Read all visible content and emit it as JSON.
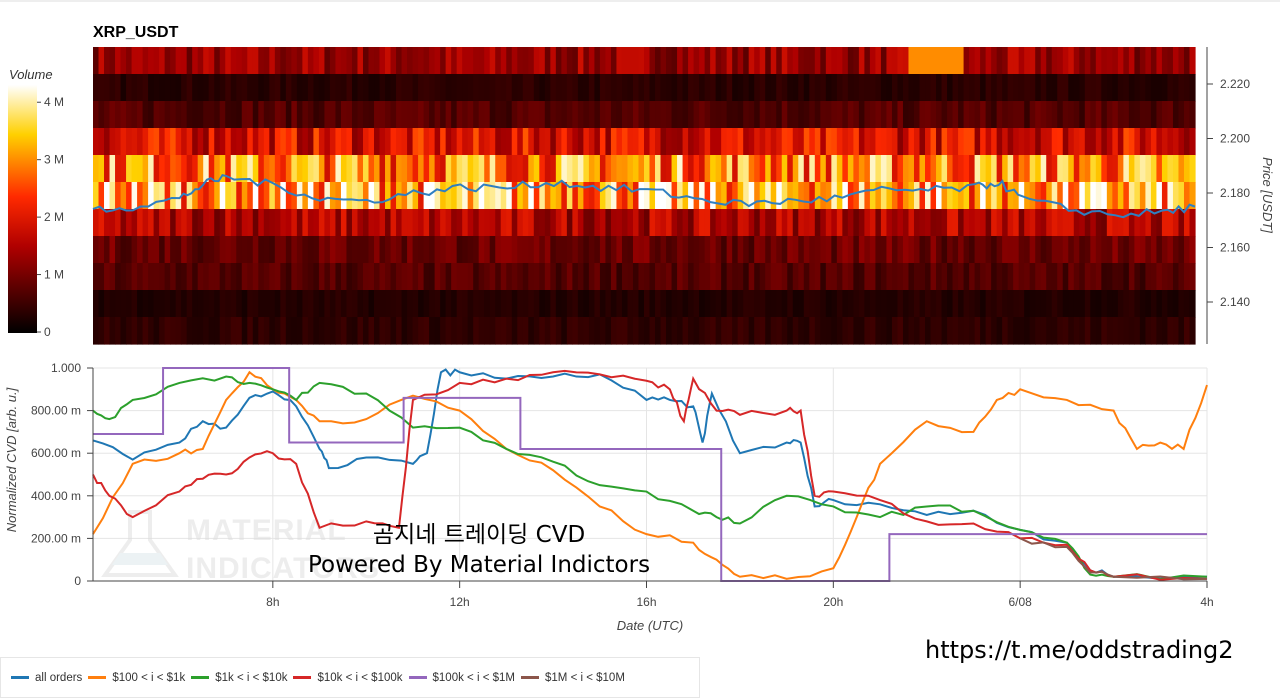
{
  "chart_data": [
    {
      "type": "heatmap",
      "title": "XRP_USDT",
      "colorbar_label": "Volume",
      "colorbar_ticks": [
        "0",
        "1 M",
        "2 M",
        "3 M",
        "4 M"
      ],
      "colorbar_values": [
        0,
        1,
        2,
        3,
        4
      ],
      "colorbar_max": 4.3,
      "ylabel": "Price [USDT]",
      "yticks": [
        "2.140",
        "2.160",
        "2.180",
        "2.200",
        "2.220"
      ],
      "ytick_values": [
        2.14,
        2.16,
        2.18,
        2.2,
        2.22
      ],
      "ylim": [
        2.1245,
        2.2336
      ],
      "row_prices": [
        2.229,
        2.219,
        2.209,
        2.199,
        2.189,
        2.179,
        2.169,
        2.159,
        2.149,
        2.139,
        2.129
      ],
      "row_mean_volume_M": [
        1.3,
        0.35,
        0.7,
        1.9,
        3.0,
        3.3,
        1.5,
        0.9,
        0.7,
        0.3,
        0.4
      ],
      "xlim": [
        4.15,
        27.7
      ],
      "price_line": {
        "x": [
          4.15,
          5,
          6,
          6.5,
          7,
          8,
          9,
          10,
          11,
          12,
          13,
          14,
          15,
          16,
          17,
          18,
          19,
          20,
          21,
          22,
          23,
          23.5,
          24,
          25,
          26,
          27,
          27.7
        ],
        "y": [
          2.174,
          2.175,
          2.178,
          2.183,
          2.186,
          2.183,
          2.178,
          2.177,
          2.18,
          2.182,
          2.182,
          2.184,
          2.182,
          2.181,
          2.178,
          2.176,
          2.177,
          2.178,
          2.181,
          2.181,
          2.182,
          2.184,
          2.178,
          2.174,
          2.172,
          2.173,
          2.175
        ],
        "color": "#2f7fc1"
      }
    },
    {
      "type": "line",
      "xlabel": "Date (UTC)",
      "ylabel": "Normalized CVD [arb. u.]",
      "xlim": [
        4.15,
        28
      ],
      "ylim": [
        0,
        1
      ],
      "xticks": [
        "8h",
        "12h",
        "16h",
        "20h",
        "6/08",
        "4h"
      ],
      "xtick_values": [
        8,
        12,
        16,
        20,
        24,
        28
      ],
      "yticks": [
        "0",
        "200.00 m",
        "400.00 m",
        "600.00 m",
        "800.00 m",
        "1.000"
      ],
      "ytick_values": [
        0,
        0.2,
        0.4,
        0.6,
        0.8,
        1.0
      ],
      "series": [
        {
          "name": "all orders",
          "color": "#1f77b4",
          "x": [
            4.15,
            5,
            6,
            6.5,
            7,
            7.5,
            8,
            8.5,
            9,
            9.2,
            10,
            11,
            11.3,
            11.6,
            12,
            13,
            14,
            15,
            16,
            16.5,
            17,
            17.2,
            17.4,
            18,
            19,
            19.3,
            19.6,
            20,
            21,
            22,
            23,
            24,
            25,
            25.5,
            26,
            28
          ],
          "y": [
            0.66,
            0.57,
            0.65,
            0.75,
            0.72,
            0.86,
            0.89,
            0.82,
            0.62,
            0.53,
            0.58,
            0.55,
            0.6,
            0.98,
            0.98,
            0.95,
            0.96,
            0.97,
            0.85,
            0.85,
            0.82,
            0.65,
            0.88,
            0.6,
            0.65,
            0.65,
            0.35,
            0.38,
            0.36,
            0.31,
            0.33,
            0.24,
            0.18,
            0.05,
            0.02,
            0.02
          ]
        },
        {
          "name": "$100 < i < $1k",
          "color": "#ff7f0e",
          "x": [
            4.15,
            5,
            6,
            6.5,
            7,
            7.5,
            8,
            8.5,
            9,
            10,
            11,
            12,
            13,
            14,
            15,
            16,
            17,
            17.5,
            18,
            19,
            20,
            20.5,
            21,
            22,
            23,
            23.5,
            24,
            25,
            26,
            26.5,
            27,
            27.5,
            28
          ],
          "y": [
            0.22,
            0.55,
            0.6,
            0.62,
            0.85,
            0.98,
            0.9,
            0.85,
            0.75,
            0.76,
            0.87,
            0.8,
            0.62,
            0.52,
            0.35,
            0.22,
            0.18,
            0.1,
            0.02,
            0.01,
            0.06,
            0.3,
            0.55,
            0.75,
            0.7,
            0.85,
            0.9,
            0.85,
            0.8,
            0.62,
            0.65,
            0.62,
            0.92
          ]
        },
        {
          "name": "$1k < i < $10k",
          "color": "#2ca02c",
          "x": [
            4.15,
            4.5,
            5,
            6,
            7,
            7.5,
            8,
            8.5,
            9,
            10,
            11,
            12,
            13,
            14,
            15,
            16,
            17,
            17.5,
            18,
            19,
            20,
            21,
            22,
            23,
            24,
            25,
            25.5,
            26,
            28
          ],
          "y": [
            0.8,
            0.76,
            0.85,
            0.93,
            0.96,
            0.93,
            0.9,
            0.85,
            0.93,
            0.88,
            0.72,
            0.72,
            0.62,
            0.56,
            0.45,
            0.42,
            0.33,
            0.3,
            0.27,
            0.4,
            0.35,
            0.3,
            0.35,
            0.33,
            0.24,
            0.18,
            0.03,
            0.02,
            0.02
          ]
        },
        {
          "name": "$10k < i < $100k",
          "color": "#d62728",
          "x": [
            4.15,
            4.5,
            5,
            6,
            6.5,
            7,
            7.5,
            8,
            8.5,
            9,
            10,
            10.7,
            11,
            12,
            13,
            14,
            15,
            16,
            16.5,
            16.8,
            17,
            17.5,
            18,
            19,
            19.3,
            19.6,
            20,
            21,
            22,
            23,
            24,
            25,
            25.5,
            26,
            28
          ],
          "y": [
            0.5,
            0.4,
            0.3,
            0.42,
            0.48,
            0.5,
            0.58,
            0.6,
            0.55,
            0.25,
            0.28,
            0.25,
            0.85,
            0.93,
            0.95,
            0.98,
            0.97,
            0.94,
            0.9,
            0.75,
            0.95,
            0.8,
            0.78,
            0.8,
            0.8,
            0.4,
            0.42,
            0.38,
            0.28,
            0.27,
            0.2,
            0.17,
            0.05,
            0.02,
            0.01
          ]
        },
        {
          "name": "$100k < i < $1M",
          "color": "#9467bd",
          "x": [
            4.15,
            5.65,
            5.65,
            8.35,
            8.35,
            10.8,
            10.8,
            13.3,
            13.3,
            17.6,
            17.6,
            21.2,
            21.2,
            28
          ],
          "y": [
            0.69,
            0.69,
            1.0,
            1.0,
            0.65,
            0.65,
            0.86,
            0.86,
            0.62,
            0.62,
            0,
            0,
            0.22,
            0.22
          ]
        },
        {
          "name": "$1M < i < $10M",
          "color": "#8c564b",
          "x": [
            24,
            25,
            25.5,
            26,
            28
          ],
          "y": [
            0.2,
            0.16,
            0.04,
            0.02,
            0.01
          ]
        }
      ]
    }
  ],
  "overlay": {
    "title_ko": "곰지네 트레이딩 CVD",
    "subtitle": "Powered By Material Indictors",
    "watermark": "MATERIAL INDICATORS"
  },
  "link": "https://t.me/oddstrading2"
}
